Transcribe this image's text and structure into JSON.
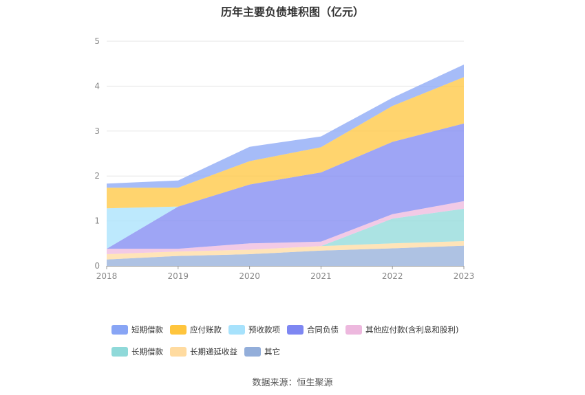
{
  "title": "历年主要负债堆积图（亿元）",
  "source_label": "数据来源：恒生聚源",
  "chart_data": {
    "type": "area",
    "stacked": true,
    "title": "历年主要负债堆积图（亿元）",
    "xlabel": "",
    "ylabel": "",
    "categories": [
      "2018",
      "2019",
      "2020",
      "2021",
      "2022",
      "2023"
    ],
    "ylim": [
      0,
      5
    ],
    "yticks": [
      "0",
      "1",
      "2",
      "3",
      "4",
      "5"
    ],
    "grid": true,
    "legend_position": "bottom",
    "series": [
      {
        "name": "其它",
        "color": "#93AEDA",
        "values": [
          0.14,
          0.22,
          0.26,
          0.34,
          0.39,
          0.45
        ]
      },
      {
        "name": "长期递延收益",
        "color": "#FFDBA0",
        "values": [
          0.12,
          0.1,
          0.1,
          0.1,
          0.11,
          0.1
        ]
      },
      {
        "name": "长期借款",
        "color": "#8FD9D9",
        "values": [
          0,
          0,
          0,
          0,
          0.55,
          0.72
        ]
      },
      {
        "name": "其他应付款(含利息和股利)",
        "color": "#EDB8DE",
        "values": [
          0.12,
          0.06,
          0.14,
          0.1,
          0.1,
          0.17
        ]
      },
      {
        "name": "合同负债",
        "color": "#7E87F2",
        "values": [
          0,
          0.94,
          1.31,
          1.54,
          1.61,
          1.73
        ]
      },
      {
        "name": "预收款项",
        "color": "#A7E2FC",
        "values": [
          0.9,
          0,
          0,
          0,
          0,
          0
        ]
      },
      {
        "name": "应付账款",
        "color": "#FFC53D",
        "values": [
          0.46,
          0.42,
          0.52,
          0.56,
          0.8,
          1.03
        ]
      },
      {
        "name": "短期借款",
        "color": "#88A5F5",
        "values": [
          0.09,
          0.16,
          0.32,
          0.24,
          0.18,
          0.28
        ]
      }
    ],
    "legend_order": [
      "短期借款",
      "应付账款",
      "预收款项",
      "合同负债",
      "其他应付款(含利息和股利)",
      "长期借款",
      "长期递延收益",
      "其它"
    ]
  }
}
